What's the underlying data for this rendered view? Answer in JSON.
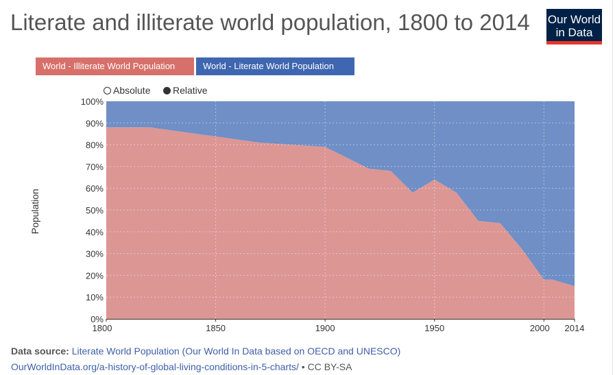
{
  "title": "Literate and illiterate world population, 1800 to 2014",
  "logo": {
    "line1": "Our World",
    "line2": "in Data"
  },
  "legend": [
    {
      "label": "World - Illiterate World Population",
      "color": "#d7706a"
    },
    {
      "label": "World - Literate World Population",
      "color": "#3f66b0"
    }
  ],
  "toggle": {
    "absolute": "Absolute",
    "relative": "Relative",
    "selected": "relative"
  },
  "chart_data": {
    "type": "area",
    "stacked": true,
    "normalized": true,
    "ylabel": "Population",
    "xlim": [
      1800,
      2014
    ],
    "ylim": [
      0,
      100
    ],
    "x_ticks": [
      1800,
      1850,
      1900,
      1950,
      2000,
      2014
    ],
    "y_ticks": [
      "0%",
      "10%",
      "20%",
      "30%",
      "40%",
      "50%",
      "60%",
      "70%",
      "80%",
      "90%",
      "100%"
    ],
    "grid": true,
    "x": [
      1800,
      1820,
      1870,
      1900,
      1910,
      1920,
      1930,
      1940,
      1950,
      1960,
      1970,
      1980,
      1990,
      2000,
      2004,
      2014
    ],
    "series": [
      {
        "name": "World - Illiterate World Population",
        "color": "#dc9694",
        "values": [
          88,
          88,
          81,
          79,
          74,
          69,
          68,
          58,
          64,
          58,
          45,
          44,
          32,
          18,
          18,
          15
        ]
      },
      {
        "name": "World - Literate World Population",
        "color": "#6f8fc6",
        "values": [
          12,
          12,
          19,
          21,
          26,
          31,
          32,
          42,
          36,
          42,
          55,
          56,
          68,
          82,
          82,
          85
        ]
      }
    ]
  },
  "source": {
    "label": "Data source:",
    "text": "Literate World Population (Our World In Data based on OECD and UNESCO)",
    "url": "OurWorldInData.org/a-history-of-global-living-conditions-in-5-charts/",
    "license": "• CC BY-SA"
  }
}
